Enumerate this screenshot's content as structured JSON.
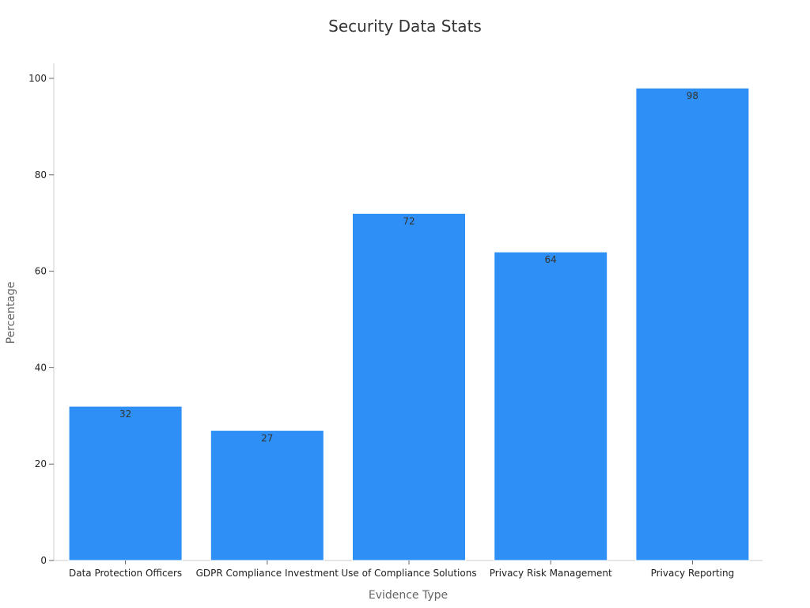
{
  "chart_data": {
    "type": "bar",
    "title": "Security Data Stats",
    "xlabel": "Evidence Type",
    "ylabel": "Percentage",
    "categories": [
      "Data Protection Officers",
      "GDPR Compliance Investment",
      "Use of Compliance Solutions",
      "Privacy Risk Management",
      "Privacy Reporting"
    ],
    "values": [
      32,
      27,
      72,
      64,
      98
    ],
    "data_labels": [
      "32",
      "27",
      "72",
      "64",
      "98"
    ],
    "ylim": [
      0,
      100
    ],
    "yticks": [
      0,
      20,
      40,
      60,
      80,
      100
    ],
    "ytick_labels": [
      "0",
      "20",
      "40",
      "60",
      "80",
      "100"
    ],
    "grid": false,
    "legend": "none",
    "colors": {
      "bar": "#2e90f6",
      "bar_edge": "#ffffff"
    }
  }
}
